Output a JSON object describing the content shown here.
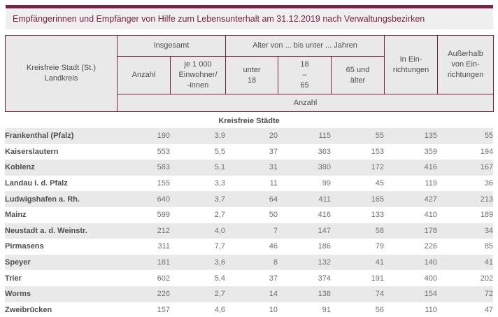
{
  "title": "Empfängerinnen und Empfänger von Hilfe zum Lebensunterhalt am 31.12.2019 nach Verwaltungsbezirken",
  "colors": {
    "accent": "#7e2040",
    "header_bg": "#e9e9e9",
    "stripe_bg": "#e9e9e9",
    "title_bg": "#efefef",
    "label_text": "#4f4f4f",
    "value_text": "#6f6f6f"
  },
  "table": {
    "header": {
      "region_col": "Kreisfreie Stadt (St.)\nLandkreis",
      "group_total": "Insgesamt",
      "group_age": "Alter von ... bis unter ... Jahren",
      "col_count": "Anzahl",
      "col_per_1000": "je 1 000\nEinwohner/\n-innen",
      "col_under_18": "unter\n18",
      "col_18_65": "18\n–\n65",
      "col_65_plus": "65 und\nälter",
      "col_in_facilities": "In Ein-\nrichtungen",
      "col_outside_facilities": "Außerhalb\nvon Ein-\nrichtungen",
      "unit_band": "Anzahl"
    },
    "section_label": "Kreisfreie Städte",
    "rows": [
      {
        "name": "Frankenthal (Pfalz)",
        "values": [
          "190",
          "3,9",
          "20",
          "115",
          "55",
          "135",
          "55"
        ]
      },
      {
        "name": "Kaiserslautern",
        "values": [
          "553",
          "5,5",
          "37",
          "363",
          "153",
          "359",
          "194"
        ]
      },
      {
        "name": "Koblenz",
        "values": [
          "583",
          "5,1",
          "31",
          "380",
          "172",
          "416",
          "167"
        ]
      },
      {
        "name": "Landau i. d. Pfalz",
        "values": [
          "155",
          "3,3",
          "11",
          "99",
          "45",
          "119",
          "36"
        ]
      },
      {
        "name": "Ludwigshafen a. Rh.",
        "values": [
          "640",
          "3,7",
          "64",
          "411",
          "165",
          "427",
          "213"
        ]
      },
      {
        "name": "Mainz",
        "values": [
          "599",
          "2,7",
          "50",
          "416",
          "133",
          "410",
          "189"
        ]
      },
      {
        "name": "Neustadt a. d. Weinstr.",
        "values": [
          "212",
          "4,0",
          "7",
          "147",
          "58",
          "178",
          "34"
        ]
      },
      {
        "name": "Pirmasens",
        "values": [
          "311",
          "7,7",
          "46",
          "186",
          "79",
          "226",
          "85"
        ]
      },
      {
        "name": "Speyer",
        "values": [
          "181",
          "3,6",
          "8",
          "132",
          "41",
          "140",
          "41"
        ]
      },
      {
        "name": "Trier",
        "values": [
          "602",
          "5,4",
          "37",
          "374",
          "191",
          "400",
          "202"
        ]
      },
      {
        "name": "Worms",
        "values": [
          "226",
          "2,7",
          "14",
          "138",
          "74",
          "154",
          "72"
        ]
      },
      {
        "name": "Zweibrücken",
        "values": [
          "157",
          "4,6",
          "10",
          "91",
          "56",
          "110",
          "47"
        ]
      }
    ]
  }
}
